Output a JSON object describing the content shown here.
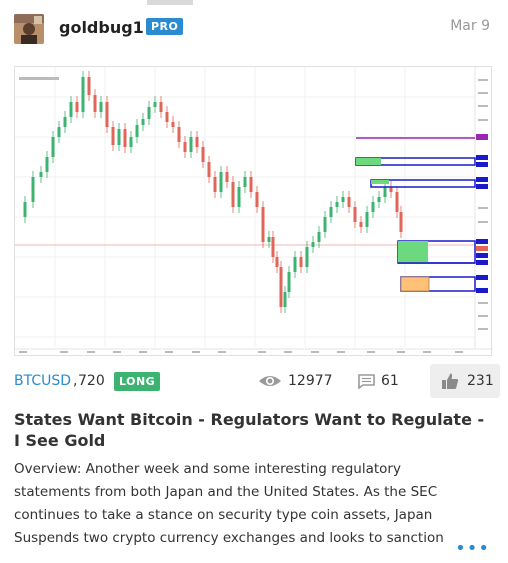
{
  "post": {
    "username": "goldbug1",
    "badge": "PRO",
    "date": "Mar 9",
    "symbol": "BTCUSD",
    "interval": "720",
    "direction": "LONG",
    "views": "12977",
    "comments": "61",
    "likes": "231",
    "title": "States Want Bitcoin - Regulators Want to Regulate - I See Gold",
    "description": "Overview: Another week and some interesting regulatory statements from both Japan and the United States. As the SEC continues to take a stance on security type coin assets, Japan Suspends two crypto currency exchanges and looks to sanction",
    "more": "•••"
  },
  "icons": {
    "views": "eye-icon",
    "comments": "comment-icon",
    "likes": "thumbs-up-icon",
    "more": "more-dots-icon"
  },
  "colors": {
    "accent": "#2a8bd0",
    "long": "#3cb371",
    "up_candle": "#3cb371",
    "down_candle": "#e0665a",
    "purple_line": "#9c27b0",
    "blue_zone": "#1a1acc",
    "green_zone": "#6cd97e",
    "orange_zone": "#ffc078"
  }
}
